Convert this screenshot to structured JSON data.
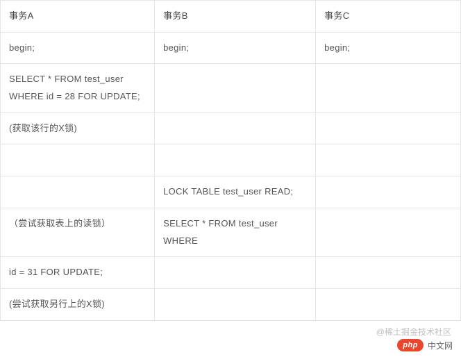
{
  "table": {
    "columns": [
      "事务A",
      "事务B",
      "事务C"
    ],
    "rows": [
      [
        "begin;",
        "begin;",
        "begin;"
      ],
      [
        "SELECT * FROM test_user WHERE id = 28 FOR UPDATE;",
        "",
        ""
      ],
      [
        "(获取该行的X锁)",
        "",
        ""
      ],
      [
        "",
        "",
        ""
      ],
      [
        "",
        "LOCK TABLE test_user READ;",
        ""
      ],
      [
        "（尝试获取表上的读锁）",
        "SELECT * FROM test_user WHERE",
        ""
      ],
      [
        "id = 31 FOR UPDATE;",
        "",
        ""
      ],
      [
        "(尝试获取另行上的X锁)",
        "",
        ""
      ]
    ],
    "border_color": "#e5e5e5",
    "text_color": "#555555",
    "font_size": 13,
    "line_height": 1.9
  },
  "watermark": {
    "php_label": "php",
    "php_site": "中文网",
    "community": "@稀土掘金技术社区",
    "php_bg_color": "#e8472e",
    "community_color": "#c0c0c0"
  }
}
